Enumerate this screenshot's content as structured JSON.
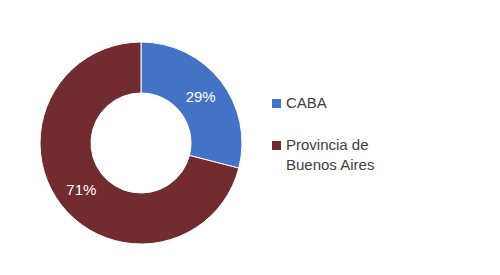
{
  "chart_data": {
    "type": "pie",
    "categories": [
      "CABA",
      "Provincia de Buenos Aires"
    ],
    "values": [
      29,
      71
    ],
    "value_labels": [
      "29%",
      "71%"
    ],
    "colors": [
      "#4472C4",
      "#722B2E"
    ],
    "data_labels": true,
    "legend": "right"
  }
}
